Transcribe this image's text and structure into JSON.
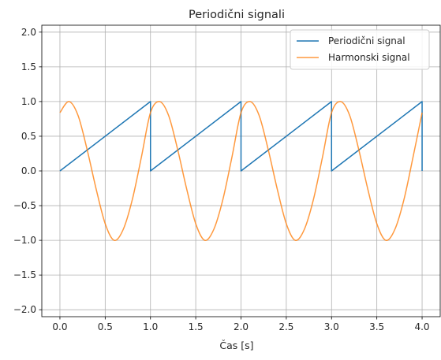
{
  "chart_data": {
    "type": "line",
    "title": "Periodični signali",
    "xlabel": "Čas [s]",
    "ylabel": "",
    "xlim": [
      -0.2,
      4.2
    ],
    "ylim": [
      -2.1,
      2.1
    ],
    "xticks": [
      "0.0",
      "0.5",
      "1.0",
      "1.5",
      "2.0",
      "2.5",
      "3.0",
      "3.5",
      "4.0"
    ],
    "yticks": [
      "−2.0",
      "−1.5",
      "−1.0",
      "−0.5",
      "0.0",
      "0.5",
      "1.0",
      "1.5",
      "2.0"
    ],
    "grid": true,
    "legend_position": "top-right",
    "series": [
      {
        "name": "Periodični signal",
        "color": "#1f77b4",
        "x": [
          0.0,
          1.0,
          1.0,
          2.0,
          2.0,
          3.0,
          3.0,
          4.0,
          4.0
        ],
        "y": [
          0.0,
          1.0,
          0.0,
          1.0,
          0.0,
          1.0,
          0.0,
          1.0,
          0.0
        ]
      },
      {
        "name": "Harmonski signal",
        "color": "#ff7f0e",
        "x": [
          0.0,
          0.1,
          0.2,
          0.3,
          0.4,
          0.5,
          0.6,
          0.7,
          0.8,
          0.9,
          1.0,
          1.1,
          1.2,
          1.3,
          1.4,
          1.5,
          1.6,
          1.7,
          1.8,
          1.9,
          2.0,
          2.1,
          2.2,
          2.3,
          2.4,
          2.5,
          2.6,
          2.7,
          2.8,
          2.9,
          3.0,
          3.1,
          3.2,
          3.3,
          3.4,
          3.5,
          3.6,
          3.7,
          3.8,
          3.9,
          4.0
        ],
        "y": [
          0.84,
          1.0,
          0.8,
          0.31,
          -0.26,
          -0.76,
          -1.0,
          -0.84,
          -0.41,
          0.2,
          0.84,
          1.0,
          0.8,
          0.31,
          -0.26,
          -0.76,
          -1.0,
          -0.84,
          -0.41,
          0.2,
          0.84,
          1.0,
          0.8,
          0.31,
          -0.26,
          -0.76,
          -1.0,
          -0.84,
          -0.41,
          0.2,
          0.84,
          1.0,
          0.8,
          0.31,
          -0.26,
          -0.76,
          -1.0,
          -0.84,
          -0.41,
          0.2,
          0.84
        ]
      }
    ]
  }
}
